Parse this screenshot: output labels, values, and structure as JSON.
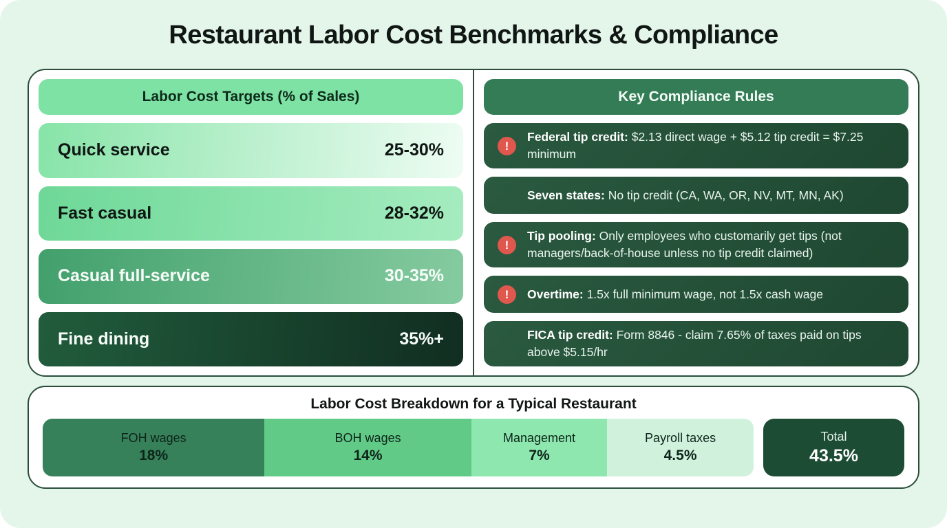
{
  "page_title": "Restaurant Labor Cost Benchmarks & Compliance",
  "icons": {
    "alert": "!"
  },
  "labor_targets": {
    "header": "Labor Cost Targets (% of Sales)",
    "rows": [
      {
        "label": "Quick service",
        "value": "25-30%"
      },
      {
        "label": "Fast casual",
        "value": "28-32%"
      },
      {
        "label": "Casual full-service",
        "value": "30-35%"
      },
      {
        "label": "Fine dining",
        "value": "35%+"
      }
    ]
  },
  "compliance": {
    "header": "Key Compliance Rules",
    "rules": [
      {
        "lead": "Federal tip credit:",
        "text": "$2.13 direct wage + $5.12 tip credit = $7.25 minimum",
        "alert": true
      },
      {
        "lead": "Seven states:",
        "text": "No tip credit (CA, WA, OR, NV, MT, MN, AK)",
        "alert": false
      },
      {
        "lead": "Tip pooling:",
        "text": "Only employees who customarily get tips (not managers/back-of-house unless no tip credit claimed)",
        "alert": true
      },
      {
        "lead": "Overtime:",
        "text": "1.5x full minimum wage, not 1.5x cash wage",
        "alert": true
      },
      {
        "lead": "FICA tip credit:",
        "text": "Form 8846 - claim 7.65% of taxes paid on tips above $5.15/hr",
        "alert": false
      }
    ]
  },
  "breakdown": {
    "title": "Labor Cost Breakdown for a Typical Restaurant",
    "segments": [
      {
        "label": "FOH wages",
        "value": "18%",
        "pct": 18,
        "width_pct": 31.2
      },
      {
        "label": "BOH wages",
        "value": "14%",
        "pct": 14,
        "width_pct": 29.1
      },
      {
        "label": "Management",
        "value": "7%",
        "pct": 7,
        "width_pct": 19.1
      },
      {
        "label": "Payroll taxes",
        "value": "4.5%",
        "pct": 4.5,
        "width_pct": 20.6
      }
    ],
    "total": {
      "label": "Total",
      "value": "43.5%",
      "pct": 43.5
    }
  },
  "colors": {
    "page_background": "#e4f5ea",
    "card_border": "#2b4d3a",
    "left_header_bg": "#7ee2a4",
    "right_header_bg": "#337c56",
    "rule_pill_bg": "#26523a",
    "alert_icon_bg": "#e0574e",
    "total_box_bg": "#1d4c34",
    "segment_colors": [
      "#37815a",
      "#62ca87",
      "#8de7ae",
      "#d0f2dc"
    ]
  },
  "chart_data": [
    {
      "type": "table",
      "title": "Labor Cost Targets (% of Sales)",
      "categories": [
        "Quick service",
        "Fast casual",
        "Casual full-service",
        "Fine dining"
      ],
      "values": [
        "25-30%",
        "28-32%",
        "30-35%",
        "35%+"
      ]
    },
    {
      "type": "bar",
      "title": "Labor Cost Breakdown for a Typical Restaurant",
      "layout": "horizontal-stacked",
      "categories": [
        "FOH wages",
        "BOH wages",
        "Management",
        "Payroll taxes"
      ],
      "values": [
        18,
        14,
        7,
        4.5
      ],
      "total": 43.5
    }
  ]
}
